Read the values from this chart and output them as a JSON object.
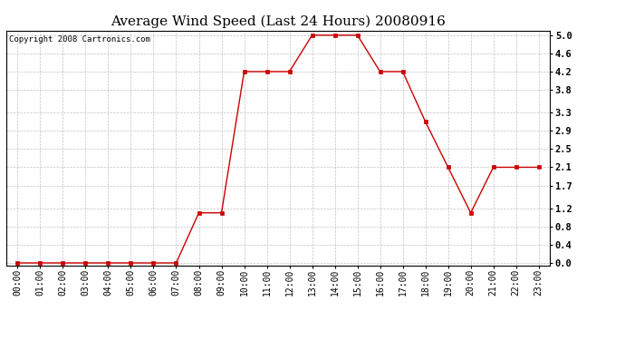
{
  "title": "Average Wind Speed (Last 24 Hours) 20080916",
  "copyright": "Copyright 2008 Cartronics.com",
  "x_labels": [
    "00:00",
    "01:00",
    "02:00",
    "03:00",
    "04:00",
    "05:00",
    "06:00",
    "07:00",
    "08:00",
    "09:00",
    "10:00",
    "11:00",
    "12:00",
    "13:00",
    "14:00",
    "15:00",
    "16:00",
    "17:00",
    "18:00",
    "19:00",
    "20:00",
    "21:00",
    "22:00",
    "23:00"
  ],
  "y_values": [
    0.0,
    0.0,
    0.0,
    0.0,
    0.0,
    0.0,
    0.0,
    0.0,
    1.1,
    1.1,
    4.2,
    4.2,
    4.2,
    5.0,
    5.0,
    5.0,
    4.2,
    4.2,
    3.1,
    2.1,
    1.1,
    2.1,
    2.1,
    2.1
  ],
  "y_ticks": [
    0.0,
    0.4,
    0.8,
    1.2,
    1.7,
    2.1,
    2.5,
    2.9,
    3.3,
    3.8,
    4.2,
    4.6,
    5.0
  ],
  "ylim": [
    0.0,
    5.0
  ],
  "line_color": "#cc0000",
  "marker_color": "#cc0000",
  "background_color": "#ffffff",
  "plot_bg_color": "#ffffff",
  "grid_color": "#bbbbbb",
  "title_fontsize": 11,
  "copyright_fontsize": 6.5,
  "tick_fontsize": 7,
  "ytick_fontsize": 7.5
}
